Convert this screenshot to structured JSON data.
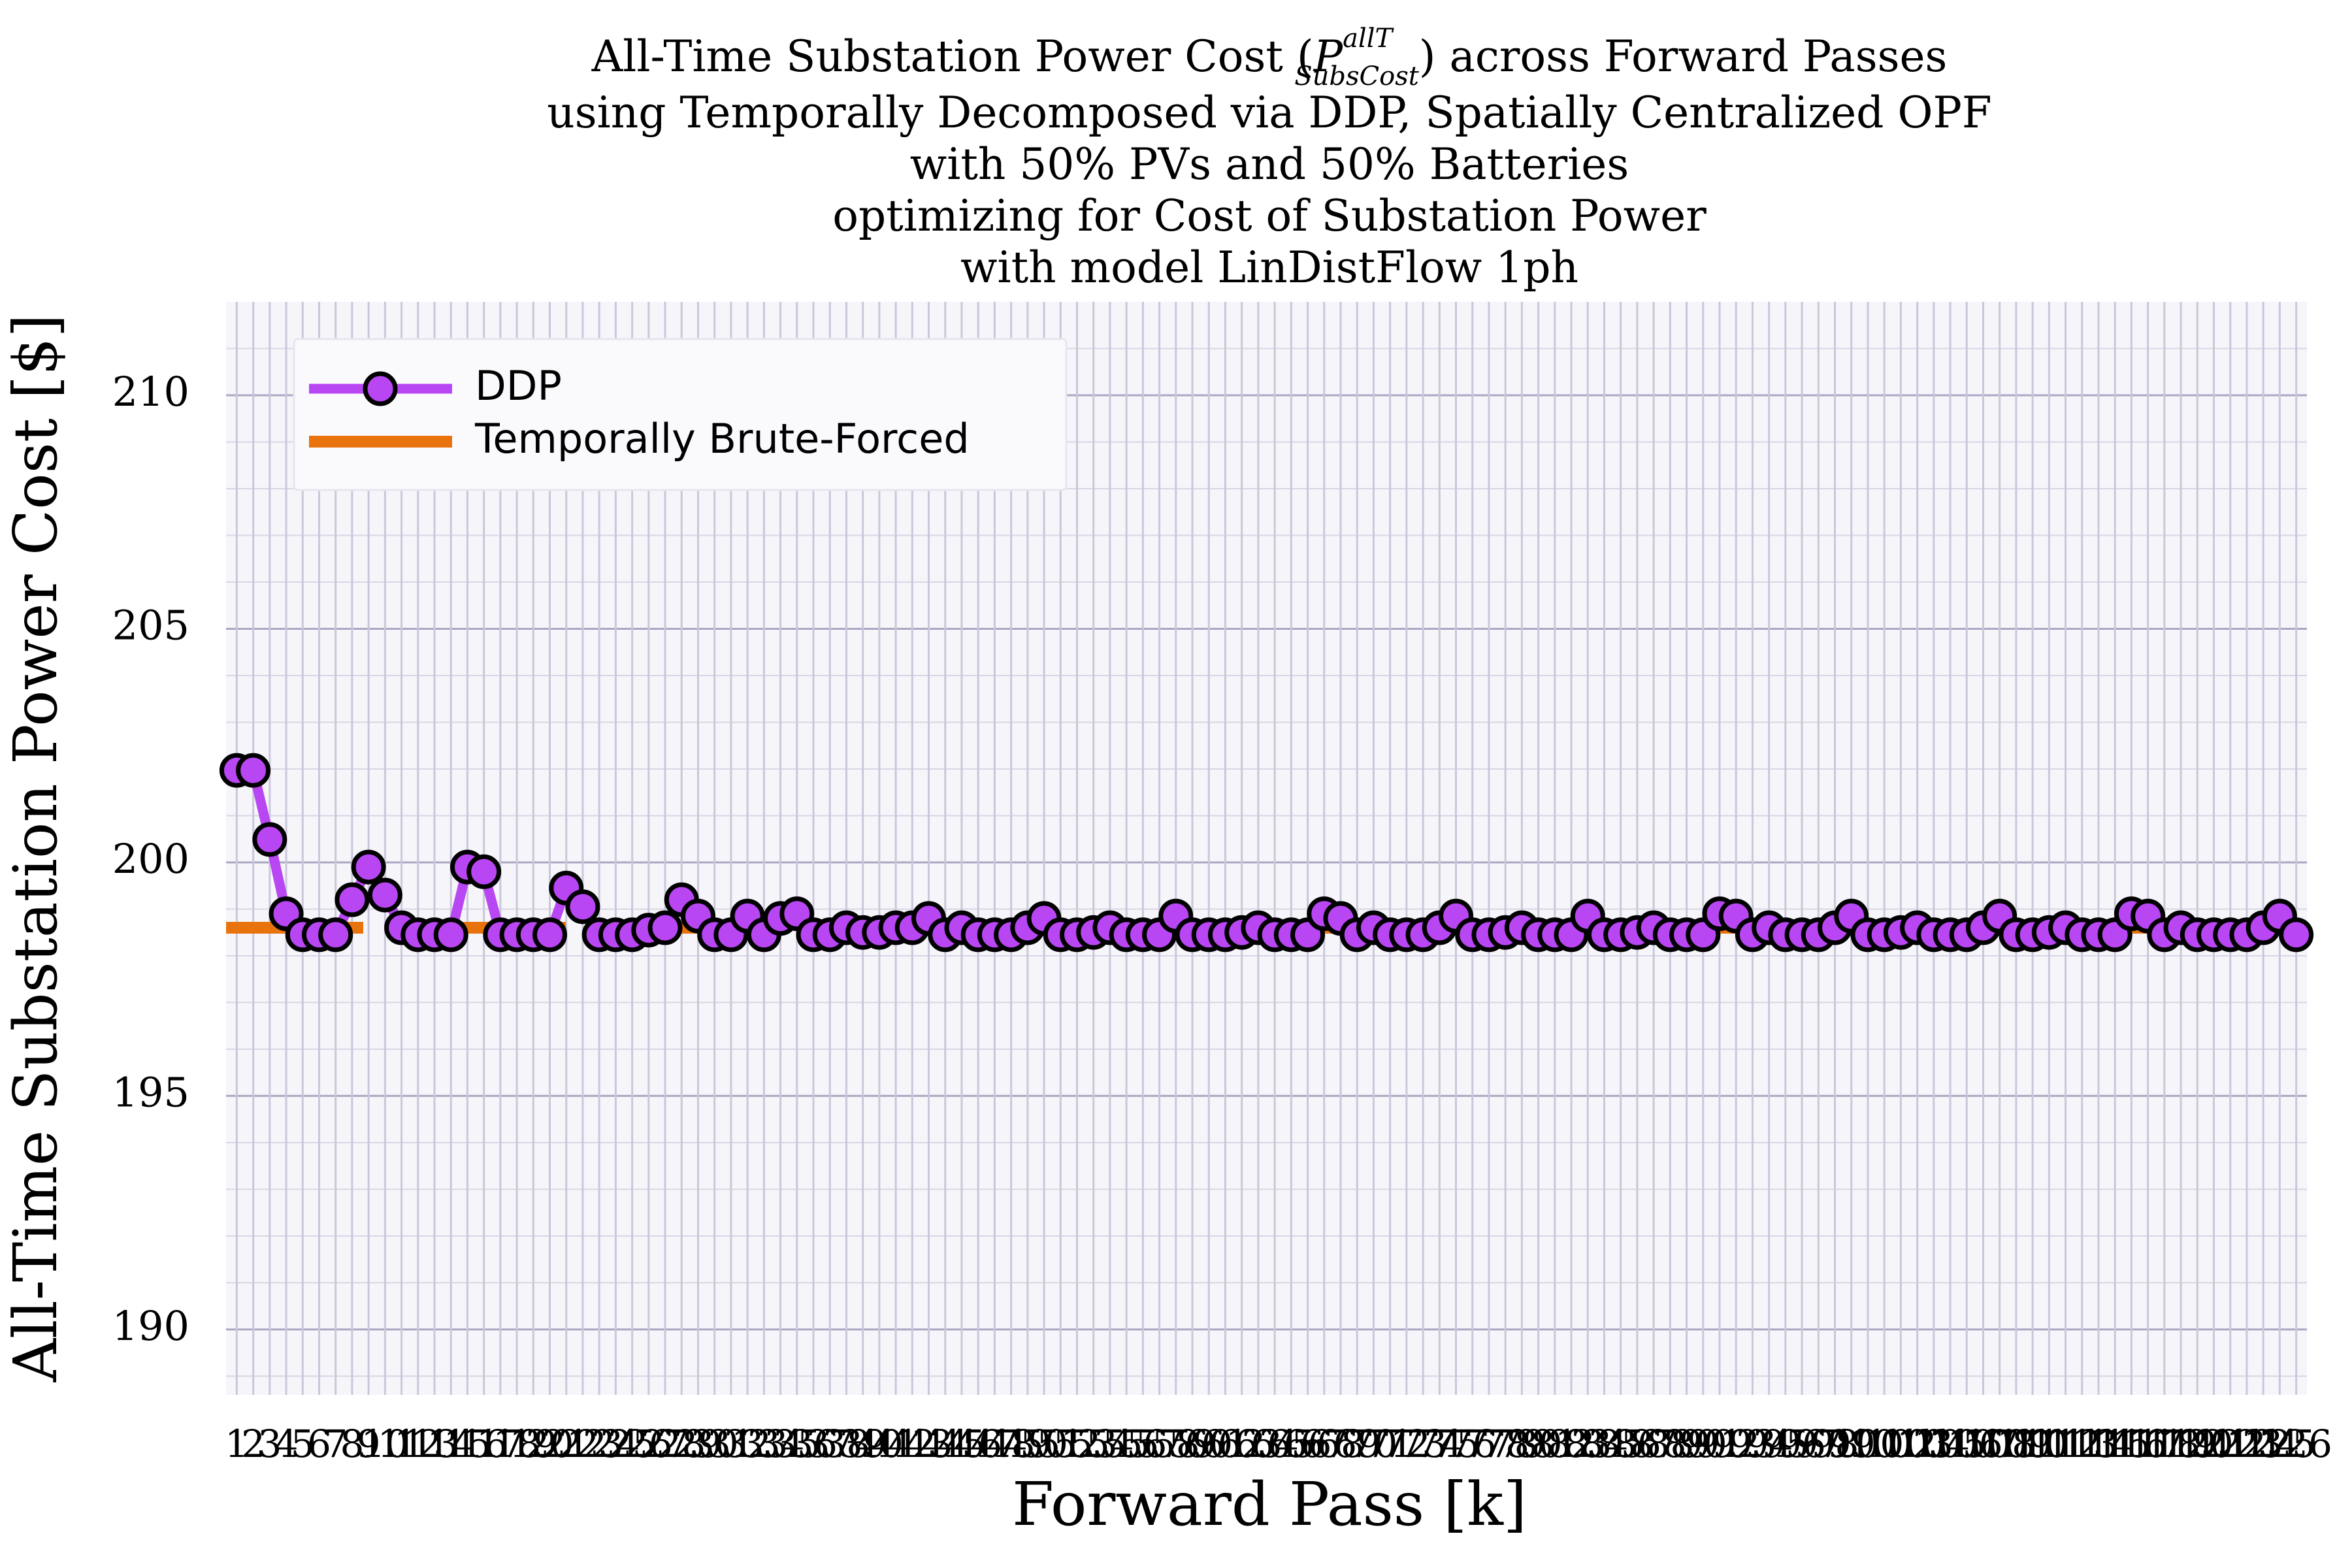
{
  "chart_data": {
    "type": "line",
    "title": {
      "before": "All-Time Substation Power Cost (",
      "symbol": "P",
      "sup": "allT",
      "sub": "SubsCost",
      "after": ") across Forward Passes"
    },
    "subtitle_lines": [
      "using Temporally Decomposed via DDP, Spatially Centralized OPF",
      "with 50% PVs and 50% Batteries",
      "optimizing for Cost of Substation Power",
      "with model LinDistFlow 1ph"
    ],
    "xlabel": "Forward Pass [k]",
    "ylabel": "All-Time Substation Power Cost [$]",
    "x": [
      1,
      2,
      3,
      4,
      5,
      6,
      7,
      8,
      9,
      10,
      11,
      12,
      13,
      14,
      15,
      16,
      17,
      18,
      19,
      20,
      21,
      22,
      23,
      24,
      25,
      26,
      27,
      28,
      29,
      30,
      31,
      32,
      33,
      34,
      35,
      36,
      37,
      38,
      39,
      40,
      41,
      42,
      43,
      44,
      45,
      46,
      47,
      48,
      49,
      50,
      51,
      52,
      53,
      54,
      55,
      56,
      57,
      58,
      59,
      60,
      61,
      62,
      63,
      64,
      65,
      66,
      67,
      68,
      69,
      70,
      71,
      72,
      73,
      74,
      75,
      76,
      77,
      78,
      79,
      80,
      81,
      82,
      83,
      84,
      85,
      86,
      87,
      88,
      89,
      90,
      91,
      92,
      93,
      94,
      95,
      96,
      97,
      98,
      99,
      100,
      101,
      102,
      103,
      104,
      105,
      106,
      107,
      108,
      109,
      110,
      111,
      112,
      113,
      114,
      115,
      116,
      117,
      118,
      119,
      120,
      121,
      122,
      123,
      124,
      125,
      126
    ],
    "series": [
      {
        "name": "DDP",
        "color": "#b846f2",
        "values": [
          201.97,
          201.97,
          200.49,
          198.9,
          198.45,
          198.45,
          198.45,
          199.2,
          199.9,
          199.3,
          198.6,
          198.45,
          198.45,
          198.45,
          199.9,
          199.8,
          198.45,
          198.45,
          198.45,
          198.45,
          199.45,
          199.05,
          198.45,
          198.45,
          198.45,
          198.55,
          198.6,
          199.2,
          198.85,
          198.45,
          198.45,
          198.85,
          198.45,
          198.8,
          198.9,
          198.45,
          198.45,
          198.6,
          198.5,
          198.5,
          198.6,
          198.6,
          198.8,
          198.45,
          198.6,
          198.45,
          198.45,
          198.45,
          198.6,
          198.8,
          198.45,
          198.45,
          198.5,
          198.6,
          198.45,
          198.45,
          198.45,
          198.85,
          198.45,
          198.45,
          198.45,
          198.5,
          198.6,
          198.45,
          198.45,
          198.45,
          198.9,
          198.8,
          198.45,
          198.6,
          198.45,
          198.45,
          198.45,
          198.6,
          198.85,
          198.45,
          198.45,
          198.5,
          198.6,
          198.45,
          198.45,
          198.45,
          198.85,
          198.45,
          198.45,
          198.5,
          198.6,
          198.45,
          198.45,
          198.45,
          198.9,
          198.85,
          198.45,
          198.6,
          198.45,
          198.45,
          198.45,
          198.6,
          198.85,
          198.45,
          198.45,
          198.5,
          198.6,
          198.45,
          198.45,
          198.45,
          198.6,
          198.85,
          198.45,
          198.45,
          198.5,
          198.6,
          198.45,
          198.45,
          198.45,
          198.9,
          198.85,
          198.45,
          198.6,
          198.45,
          198.45,
          198.45,
          198.45,
          198.6,
          198.85,
          198.45
        ]
      }
    ],
    "reference_lines": [
      {
        "name": "Temporally Brute-Forced",
        "color": "#e8730c",
        "value": 198.6,
        "dashed": true
      }
    ],
    "xlim": [
      0.35,
      126.65
    ],
    "ylim": [
      188.6,
      212
    ],
    "yticks": [
      190,
      195,
      200,
      205,
      210
    ],
    "yminorticks": [
      189,
      191,
      192,
      193,
      194,
      196,
      197,
      198,
      199,
      201,
      202,
      203,
      204,
      206,
      207,
      208,
      209,
      211
    ],
    "grid": true,
    "legend": "upper left"
  }
}
